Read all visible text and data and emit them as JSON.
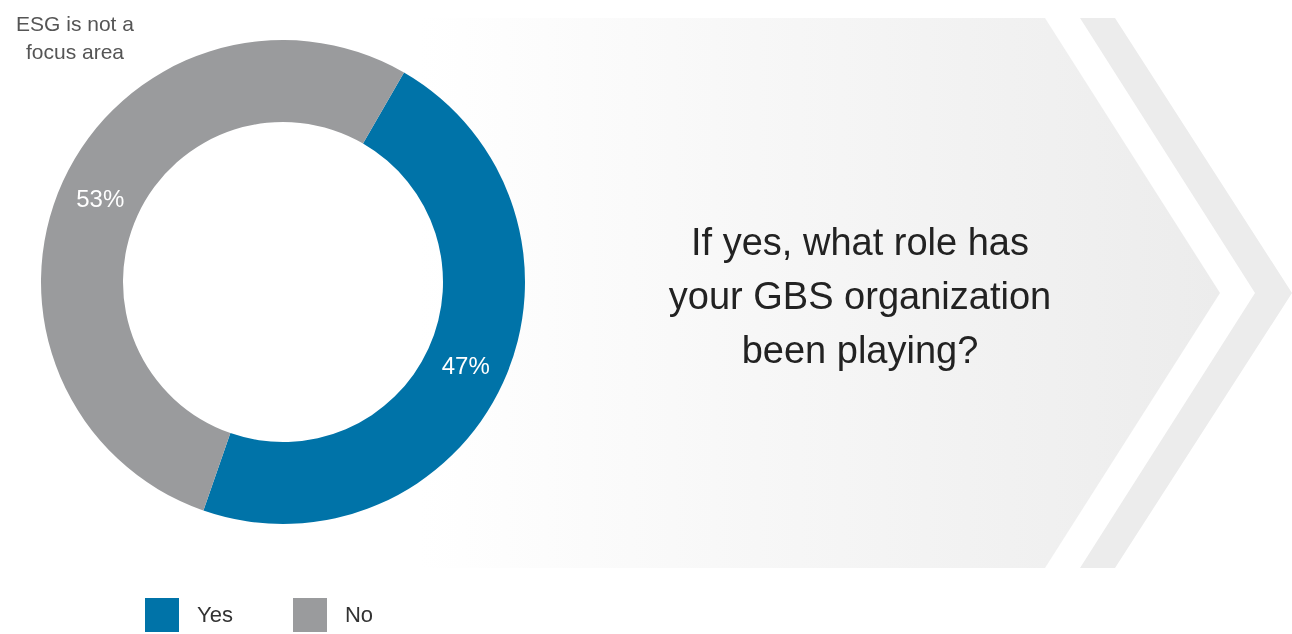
{
  "chart_data": {
    "type": "donut",
    "categories": [
      "Yes",
      "No"
    ],
    "values": [
      47,
      53
    ],
    "value_labels": [
      "47%",
      "53%"
    ],
    "colors": [
      "#0073a8",
      "#9a9b9d"
    ],
    "legend": "bottom",
    "annotations": [
      "ESG is not a focus area",
      "If yes, what role has your GBS organization been playing?"
    ]
  }
}
